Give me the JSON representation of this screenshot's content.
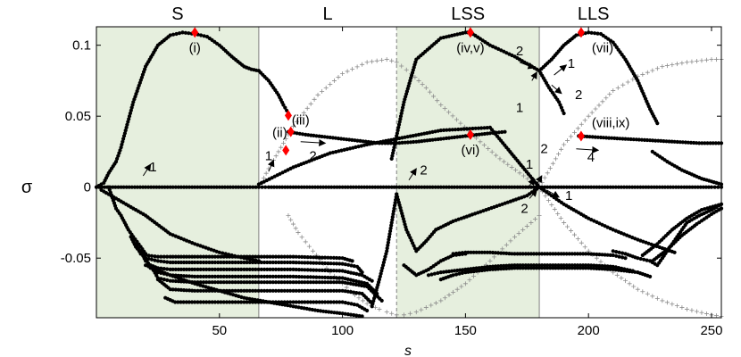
{
  "chart_data": {
    "type": "scatter",
    "xlabel": "s",
    "ylabel": "σ",
    "xlim": [
      0,
      254
    ],
    "ylim": [
      -0.092,
      0.113
    ],
    "xticks": [
      50,
      100,
      150,
      200,
      250
    ],
    "xtick_labels": [
      "50",
      "100",
      "150",
      "200",
      "250"
    ],
    "yticks": [
      0.1,
      0.05,
      0,
      -0.05
    ],
    "ytick_labels": [
      "0.1",
      "0.05",
      "0",
      "-0.05"
    ],
    "colors": {
      "region_fill": "#e6efde",
      "marker": "#ff0000",
      "data": "#000000",
      "cross": "#8c8c8c",
      "divider": "#808080"
    },
    "regions": [
      {
        "label": "S",
        "x0": 0,
        "x1": 66,
        "label_x": 33,
        "shaded": true
      },
      {
        "label": "L",
        "x0": 66,
        "x1": 122,
        "label_x": 94,
        "shaded": false
      },
      {
        "label": "LSS",
        "x0": 122,
        "x1": 180,
        "label_x": 151,
        "shaded": true
      },
      {
        "label": "LLS",
        "x0": 180,
        "x1": 254,
        "label_x": 202,
        "shaded": false
      }
    ],
    "dividers": [
      {
        "x": 66,
        "style": "solid"
      },
      {
        "x": 122,
        "style": "dashed"
      },
      {
        "x": 180,
        "style": "solid"
      }
    ],
    "branches": [
      {
        "x": [
          0,
          3,
          5,
          8,
          10,
          15,
          20,
          25,
          30,
          35,
          40,
          45,
          50,
          55,
          60,
          63,
          66
        ],
        "y": [
          0,
          0.003,
          0.01,
          0.018,
          0.028,
          0.06,
          0.085,
          0.1,
          0.107,
          0.109,
          0.108,
          0.106,
          0.1,
          0.092,
          0.085,
          0.083,
          0.082
        ]
      },
      {
        "x": [
          66,
          70,
          74,
          76,
          78
        ],
        "y": [
          0.082,
          0.075,
          0.065,
          0.058,
          0.052
        ]
      },
      {
        "x": [
          2,
          5,
          10,
          20,
          30,
          40,
          50,
          55,
          60,
          66
        ],
        "y": [
          -0.002,
          -0.005,
          -0.01,
          -0.02,
          -0.033,
          -0.04,
          -0.046,
          -0.048,
          -0.05,
          -0.052
        ]
      },
      {
        "x": [
          78,
          85,
          95,
          105,
          115,
          122,
          130,
          140,
          150,
          160,
          166
        ],
        "y": [
          0.039,
          0.037,
          0.035,
          0.033,
          0.031,
          0.031,
          0.032,
          0.034,
          0.036,
          0.038,
          0.039
        ]
      },
      {
        "x": [
          120,
          125,
          130,
          140,
          150,
          152,
          160,
          170,
          180
        ],
        "y": [
          0.02,
          0.06,
          0.09,
          0.105,
          0.109,
          0.109,
          0.1,
          0.092,
          0.082
        ]
      },
      {
        "x": [
          180,
          184,
          188,
          190
        ],
        "y": [
          0.082,
          0.07,
          0.06,
          0.052
        ]
      },
      {
        "x": [
          180,
          185,
          190,
          195,
          200,
          205,
          210,
          215,
          220,
          225,
          228
        ],
        "y": [
          0.082,
          0.09,
          0.1,
          0.107,
          0.109,
          0.108,
          0.102,
          0.09,
          0.075,
          0.055,
          0.045
        ]
      },
      {
        "x": [
          196,
          205,
          215,
          225,
          235,
          245,
          254
        ],
        "y": [
          0.036,
          0.035,
          0.034,
          0.033,
          0.032,
          0.031,
          0.031
        ]
      },
      {
        "x": [
          226,
          232,
          238,
          242,
          246,
          250,
          254
        ],
        "y": [
          0.025,
          0.018,
          0.012,
          0.009,
          0.006,
          0.004,
          0.002
        ]
      },
      {
        "x": [
          0,
          10,
          20,
          30,
          40,
          50,
          60,
          66,
          70,
          80,
          90,
          100,
          110,
          120,
          122,
          130,
          140,
          150,
          160,
          170,
          180,
          190,
          200,
          210,
          220,
          230,
          240,
          250,
          254
        ],
        "y": [
          0,
          0,
          0,
          0,
          0,
          0,
          0,
          0,
          0,
          0,
          0,
          0,
          0,
          0,
          0,
          0,
          0,
          0,
          0,
          0,
          0,
          0,
          0,
          0,
          0,
          0,
          0,
          0,
          0
        ]
      },
      {
        "x": [
          66,
          80,
          95,
          110,
          122,
          140,
          160,
          180
        ],
        "y": [
          0.002,
          0.014,
          0.024,
          0.03,
          0.034,
          0.04,
          0.042,
          0.0
        ]
      },
      {
        "x": [
          5,
          8,
          10,
          13,
          15,
          18,
          20
        ],
        "y": [
          0,
          -0.015,
          -0.02,
          -0.03,
          -0.035,
          -0.042,
          -0.047
        ]
      },
      {
        "x": [
          20,
          30,
          40,
          50,
          60,
          70,
          80,
          90,
          100,
          108
        ],
        "y": [
          -0.055,
          -0.062,
          -0.068,
          -0.073,
          -0.078,
          -0.081,
          -0.084,
          -0.087,
          -0.089,
          -0.091
        ]
      },
      {
        "x": [
          112,
          115,
          118,
          120,
          122
        ],
        "y": [
          -0.084,
          -0.065,
          -0.045,
          -0.025,
          -0.005
        ]
      },
      {
        "x": [
          122,
          126,
          130,
          134,
          138
        ],
        "y": [
          -0.005,
          -0.03,
          -0.045,
          -0.038,
          -0.03
        ]
      },
      {
        "x": [
          138,
          145,
          155,
          165,
          175,
          180
        ],
        "y": [
          -0.03,
          -0.024,
          -0.018,
          -0.012,
          -0.006,
          0.0
        ]
      },
      {
        "x": [
          180,
          190,
          200,
          210,
          220,
          230,
          235
        ],
        "y": [
          0,
          -0.012,
          -0.022,
          -0.03,
          -0.037,
          -0.043,
          -0.046
        ]
      },
      {
        "x": [
          230,
          236,
          240,
          245,
          250,
          254
        ],
        "y": [
          -0.05,
          -0.035,
          -0.025,
          -0.02,
          -0.016,
          -0.012
        ]
      },
      {
        "x": [
          125,
          130,
          135,
          140,
          145,
          150
        ],
        "y": [
          -0.055,
          -0.062,
          -0.058,
          -0.052,
          -0.048,
          -0.047
        ]
      },
      {
        "x": [
          145,
          150,
          160,
          170,
          180,
          190,
          200,
          210,
          215
        ],
        "y": [
          -0.047,
          -0.046,
          -0.046,
          -0.047,
          -0.047,
          -0.047,
          -0.047,
          -0.048,
          -0.05
        ]
      },
      {
        "x": [
          14,
          16,
          18,
          20,
          25,
          30,
          40,
          60,
          80,
          100,
          104
        ],
        "y": [
          -0.035,
          -0.042,
          -0.046,
          -0.048,
          -0.049,
          -0.049,
          -0.049,
          -0.049,
          -0.049,
          -0.05,
          -0.052
        ]
      },
      {
        "x": [
          16,
          18,
          20,
          25,
          30,
          40,
          60,
          80,
          100,
          106,
          108
        ],
        "y": [
          -0.04,
          -0.047,
          -0.05,
          -0.052,
          -0.053,
          -0.053,
          -0.053,
          -0.053,
          -0.054,
          -0.056,
          -0.06
        ]
      },
      {
        "x": [
          18,
          20,
          22,
          25,
          30,
          40,
          60,
          80,
          100,
          108,
          112
        ],
        "y": [
          -0.045,
          -0.052,
          -0.055,
          -0.057,
          -0.058,
          -0.058,
          -0.058,
          -0.058,
          -0.059,
          -0.062,
          -0.066
        ]
      },
      {
        "x": [
          20,
          22,
          25,
          30,
          40,
          60,
          80,
          100,
          110,
          114
        ],
        "y": [
          -0.05,
          -0.057,
          -0.06,
          -0.062,
          -0.063,
          -0.063,
          -0.063,
          -0.064,
          -0.068,
          -0.075
        ]
      },
      {
        "x": [
          22,
          25,
          30,
          40,
          60,
          80,
          100,
          110,
          116
        ],
        "y": [
          -0.055,
          -0.064,
          -0.066,
          -0.067,
          -0.067,
          -0.067,
          -0.067,
          -0.07,
          -0.08
        ]
      },
      {
        "x": [
          25,
          30,
          40,
          60,
          80,
          100,
          108,
          112
        ],
        "y": [
          -0.065,
          -0.072,
          -0.073,
          -0.073,
          -0.073,
          -0.073,
          -0.075,
          -0.082
        ]
      },
      {
        "x": [
          28,
          32,
          40,
          60,
          80,
          100,
          106,
          110
        ],
        "y": [
          -0.078,
          -0.081,
          -0.081,
          -0.081,
          -0.081,
          -0.081,
          -0.083,
          -0.087
        ]
      },
      {
        "x": [
          135,
          140,
          150,
          160,
          170,
          180,
          190,
          200,
          210,
          218
        ],
        "y": [
          -0.062,
          -0.06,
          -0.058,
          -0.056,
          -0.055,
          -0.055,
          -0.055,
          -0.055,
          -0.056,
          -0.059
        ]
      },
      {
        "x": [
          140,
          145,
          150,
          160,
          170,
          180,
          190,
          200,
          210,
          220,
          225
        ],
        "y": [
          -0.065,
          -0.062,
          -0.06,
          -0.058,
          -0.057,
          -0.057,
          -0.057,
          -0.057,
          -0.058,
          -0.06,
          -0.063
        ]
      },
      {
        "x": [
          210,
          215,
          220,
          225,
          228,
          230
        ],
        "y": [
          -0.045,
          -0.047,
          -0.05,
          -0.052,
          -0.055,
          -0.05
        ]
      },
      {
        "x": [
          222,
          228,
          234,
          240,
          246,
          254
        ],
        "y": [
          -0.048,
          -0.04,
          -0.03,
          -0.022,
          -0.016,
          -0.012
        ]
      },
      {
        "x": [
          226,
          232,
          238,
          244,
          250,
          254
        ],
        "y": [
          -0.052,
          -0.044,
          -0.034,
          -0.026,
          -0.019,
          -0.015
        ]
      }
    ],
    "cross_branches": [
      {
        "x": [
          66,
          70,
          75,
          80,
          90,
          100,
          110,
          118,
          122,
          128,
          134,
          140,
          148,
          156,
          164,
          172,
          180
        ],
        "y": [
          0.0,
          0.013,
          0.028,
          0.043,
          0.065,
          0.08,
          0.088,
          0.09,
          0.088,
          0.08,
          0.07,
          0.058,
          0.045,
          0.032,
          0.02,
          0.01,
          0.0
        ]
      },
      {
        "x": [
          78,
          82,
          88,
          95,
          100,
          105,
          110,
          115,
          118,
          122,
          125,
          130,
          140,
          150,
          160,
          170,
          180
        ],
        "y": [
          -0.02,
          -0.032,
          -0.045,
          -0.06,
          -0.068,
          -0.076,
          -0.082,
          -0.086,
          -0.088,
          -0.09,
          -0.09,
          -0.088,
          -0.08,
          -0.068,
          -0.052,
          -0.035,
          -0.02
        ]
      },
      {
        "x": [
          180,
          190,
          200,
          210,
          220,
          230,
          240,
          250,
          254
        ],
        "y": [
          0.0,
          0.03,
          0.05,
          0.068,
          0.078,
          0.085,
          0.088,
          0.09,
          0.09
        ]
      },
      {
        "x": [
          180,
          190,
          200,
          210,
          220,
          230,
          240,
          250,
          254
        ],
        "y": [
          0.0,
          -0.025,
          -0.045,
          -0.06,
          -0.072,
          -0.08,
          -0.086,
          -0.09,
          -0.091
        ]
      }
    ],
    "markers": [
      {
        "x": 40,
        "y": 0.109,
        "label": "(i)",
        "label_dx": 0,
        "label_dy": 1
      },
      {
        "x": 78,
        "y": 0.0505,
        "label": "",
        "label_dx": 0,
        "label_dy": 0
      },
      {
        "x": 79,
        "y": 0.039,
        "label": "(ii)",
        "label_dx": -1,
        "label_dy": 0
      },
      {
        "x": 77,
        "y": 0.026,
        "label": "",
        "label_dx": 0,
        "label_dy": 0
      },
      {
        "x": 152,
        "y": 0.109,
        "label": "(iv,v)",
        "label_dx": 0,
        "label_dy": 1
      },
      {
        "x": 152,
        "y": 0.037,
        "label": "(vi)",
        "label_dx": 0,
        "label_dy": 1
      },
      {
        "x": 197,
        "y": 0.109,
        "label": "(vii)",
        "label_dx": 1,
        "label_dy": 1
      },
      {
        "x": 197,
        "y": 0.036,
        "label": "(viii,ix)",
        "label_dx": 1,
        "label_dy": -1
      }
    ],
    "annotations": [
      {
        "text": "(iii)",
        "x": 83,
        "y": 0.044
      },
      {
        "text": "1",
        "x": 23,
        "y": 0.011
      },
      {
        "text": "1",
        "x": 70,
        "y": 0.019
      },
      {
        "text": "2",
        "x": 88,
        "y": 0.019
      },
      {
        "text": "2",
        "x": 133,
        "y": 0.009
      },
      {
        "text": "2",
        "x": 172,
        "y": 0.093
      },
      {
        "text": "1",
        "x": 172,
        "y": 0.053
      },
      {
        "text": "1",
        "x": 176,
        "y": 0.013
      },
      {
        "text": "2",
        "x": 182,
        "y": 0.024
      },
      {
        "text": "2",
        "x": 174,
        "y": -0.018
      },
      {
        "text": "1",
        "x": 193,
        "y": 0.084
      },
      {
        "text": "2",
        "x": 196,
        "y": 0.062
      },
      {
        "text": "1",
        "x": 192,
        "y": -0.009
      },
      {
        "text": "4",
        "x": 201,
        "y": 0.018
      }
    ],
    "arrows": [
      {
        "x1": 19,
        "y1": 0.008,
        "x2": 22,
        "y2": 0.016
      },
      {
        "x1": 70,
        "y1": 0.011,
        "x2": 72,
        "y2": 0.019
      },
      {
        "x1": 83,
        "y1": 0.032,
        "x2": 93,
        "y2": 0.031
      },
      {
        "x1": 127,
        "y1": 0.005,
        "x2": 130,
        "y2": 0.013
      },
      {
        "x1": 172,
        "y1": 0.088,
        "x2": 178,
        "y2": 0.084
      },
      {
        "x1": 177,
        "y1": 0.075,
        "x2": 179,
        "y2": 0.081
      },
      {
        "x1": 176,
        "y1": 0.001,
        "x2": 178,
        "y2": 0.006
      },
      {
        "x1": 178,
        "y1": -0.001,
        "x2": 181,
        "y2": 0.008
      },
      {
        "x1": 176,
        "y1": -0.008,
        "x2": 179,
        "y2": -0.002
      },
      {
        "x1": 186,
        "y1": 0.079,
        "x2": 191,
        "y2": 0.086
      },
      {
        "x1": 185,
        "y1": 0.072,
        "x2": 189,
        "y2": 0.066
      },
      {
        "x1": 183,
        "y1": -0.002,
        "x2": 188,
        "y2": -0.007
      },
      {
        "x1": 195,
        "y1": 0.027,
        "x2": 204,
        "y2": 0.026
      }
    ]
  }
}
